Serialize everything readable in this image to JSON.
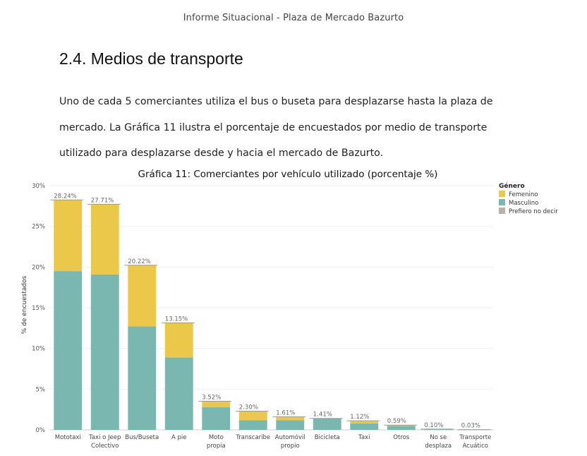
{
  "header": {
    "text": "Informe Situacional - Plaza de Mercado Bazurto"
  },
  "section": {
    "title": "2.4. Medios de transporte"
  },
  "paragraph": {
    "lines": [
      "Uno de cada 5 comerciantes utiliza el bus o buseta para desplazarse hasta la plaza de",
      "mercado. La Gráfica 11 ilustra el porcentaje de encuestados por medio de transporte",
      "utilizado para desplazarse desde y hacia el mercado de Bazurto."
    ]
  },
  "chart_data": {
    "type": "bar",
    "stacked": true,
    "title": "Gráfica 11: Comerciantes por vehículo utilizado (porcentaje %)",
    "ylabel": "% de encuestados",
    "xlabel": "",
    "ylim": [
      0,
      30
    ],
    "yticks": [
      0,
      5,
      10,
      15,
      20,
      25,
      30
    ],
    "ytick_labels": [
      "0%",
      "5%",
      "10%",
      "15%",
      "20%",
      "25%",
      "30%"
    ],
    "grid": true,
    "legend": {
      "title": "Género",
      "placement": "top-right"
    },
    "categories": [
      [
        "Mototaxi"
      ],
      [
        "Taxi o Jeep",
        "Colectivo"
      ],
      [
        "Bus/Buseta"
      ],
      [
        "A pie"
      ],
      [
        "Moto",
        "propia"
      ],
      [
        "Transcaribe"
      ],
      [
        "Automóvil",
        "propio"
      ],
      [
        "Bicicleta"
      ],
      [
        "Taxi"
      ],
      [
        "Otros"
      ],
      [
        "No se",
        "desplaza"
      ],
      [
        "Transporte",
        "Acuático"
      ]
    ],
    "totals": [
      "28.24%",
      "27.71%",
      "20.22%",
      "13.15%",
      "3.52%",
      "2.30%",
      "1.61%",
      "1.41%",
      "1.12%",
      "0.59%",
      "0.10%",
      "0.03%"
    ],
    "series": [
      {
        "name": "Masculino",
        "color": "#7ab7b0",
        "values": [
          19.5,
          19.1,
          12.7,
          8.9,
          2.8,
          1.2,
          1.2,
          1.41,
          0.8,
          0.5,
          0.1,
          0.03
        ]
      },
      {
        "name": "Femenino",
        "color": "#ebc84a",
        "values": [
          8.74,
          8.61,
          7.52,
          4.25,
          0.72,
          1.1,
          0.41,
          0.0,
          0.32,
          0.09,
          0.0,
          0.0
        ]
      },
      {
        "name": "Prefiero no decir",
        "color": "#bab0ac",
        "values": [
          0,
          0,
          0,
          0,
          0,
          0,
          0,
          0,
          0,
          0,
          0,
          0
        ]
      }
    ]
  }
}
